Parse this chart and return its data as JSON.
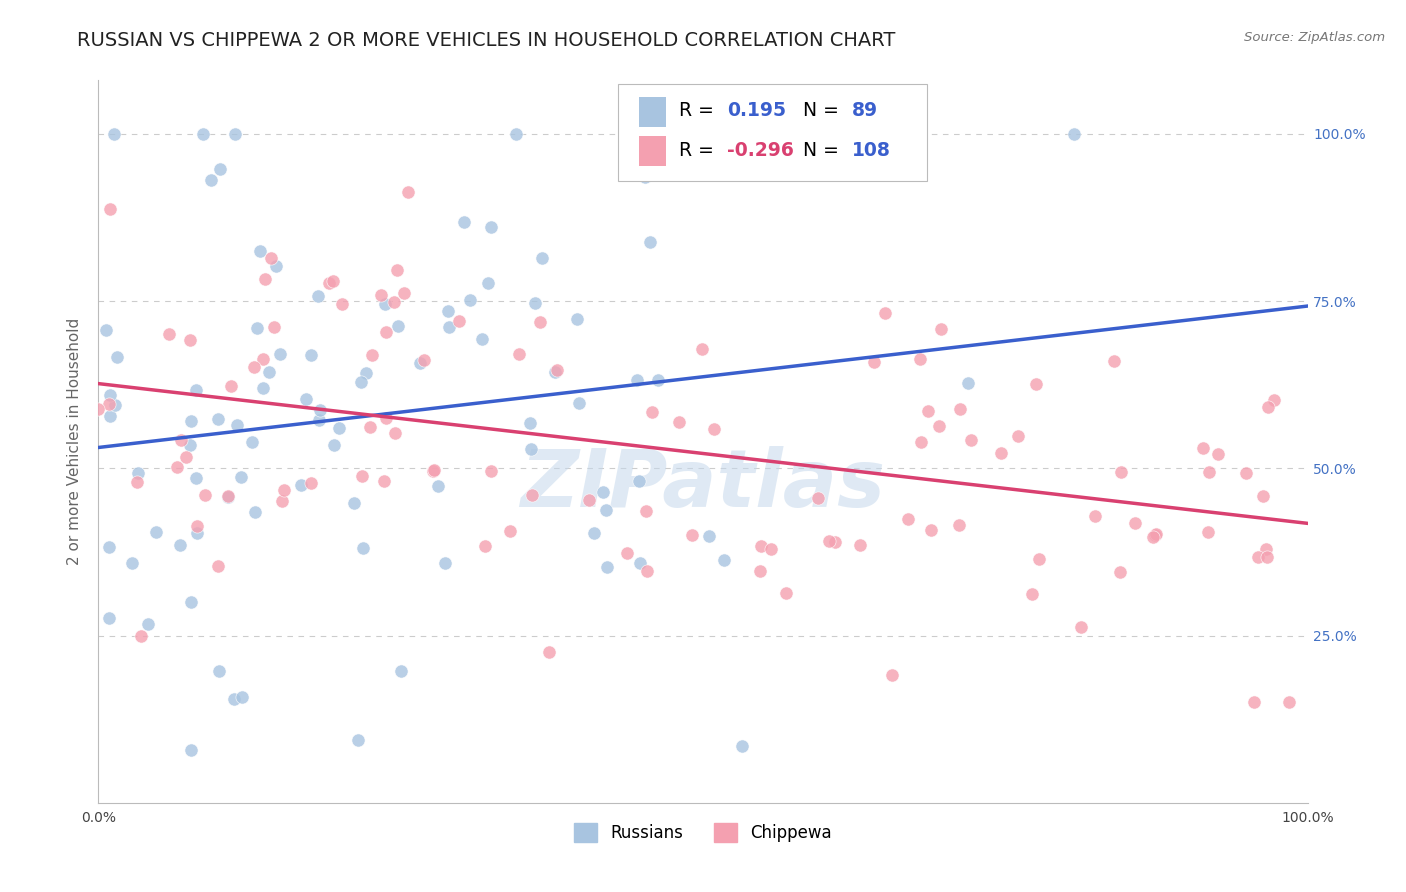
{
  "title": "RUSSIAN VS CHIPPEWA 2 OR MORE VEHICLES IN HOUSEHOLD CORRELATION CHART",
  "source_text": "Source: ZipAtlas.com",
  "ylabel": "2 or more Vehicles in Household",
  "xlim": [
    0,
    1.0
  ],
  "ylim": [
    0,
    1.08
  ],
  "watermark": "ZIPatlas",
  "russian_color": "#a8c4e0",
  "chippewa_color": "#f4a0b0",
  "russian_trend_color": "#3a5fcd",
  "chippewa_trend_color": "#d94070",
  "russian_R": 0.195,
  "russian_N": 89,
  "chippewa_R": -0.296,
  "chippewa_N": 108,
  "background_color": "#ffffff",
  "grid_color": "#cccccc",
  "title_fontsize": 14,
  "axis_label_fontsize": 11,
  "tick_fontsize": 10,
  "right_tick_color": "#4472c4"
}
